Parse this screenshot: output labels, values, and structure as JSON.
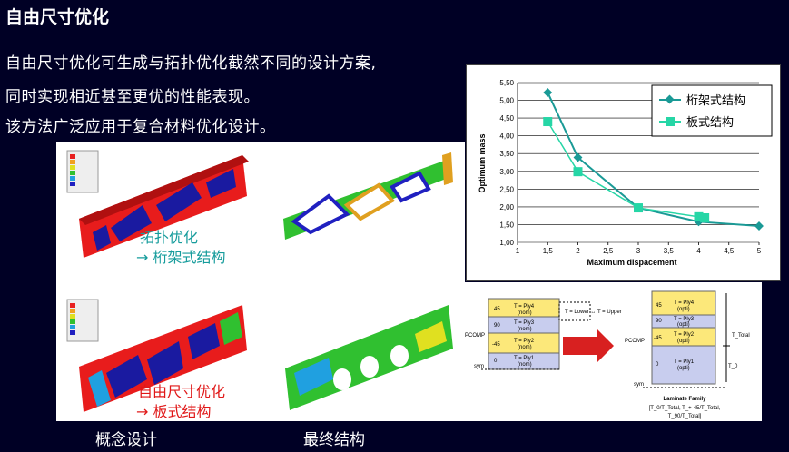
{
  "slide": {
    "title": "自由尺寸优化",
    "lines": [
      "自由尺寸优化可生成与拓扑优化截然不同的设计方案,",
      "同时实现相近甚至更优的性能表现。",
      "该方法广泛应用于复合材料优化设计。"
    ],
    "captions": [
      "概念设计",
      "最终结构"
    ]
  },
  "figure": {
    "topo_label": "拓扑优化",
    "topo_result": "→ 桁架式结构",
    "fs_label": "自由尺寸优化",
    "fs_result": "→ 板式结构"
  },
  "chart_data": {
    "type": "line",
    "xlabel": "Maximum dispacement",
    "ylabel": "Optimum mass",
    "xlim": [
      1,
      5
    ],
    "ylim": [
      1.0,
      5.5
    ],
    "xticks": [
      "1",
      "1,5",
      "2",
      "2,5",
      "3",
      "3,5",
      "4",
      "4,5",
      "5"
    ],
    "yticks": [
      "1,00",
      "1,50",
      "2,00",
      "2,50",
      "3,00",
      "3,50",
      "4,00",
      "4,50",
      "5,00",
      "5,50"
    ],
    "grid": true,
    "legend": "top-right",
    "series": [
      {
        "name": "桁架式结构",
        "color": "#1a9a96",
        "marker": "diamond",
        "x": [
          1.5,
          2,
          3,
          4,
          5
        ],
        "y": [
          5.22,
          3.39,
          1.97,
          1.58,
          1.46
        ]
      },
      {
        "name": "板式结构",
        "color": "#26d6a6",
        "marker": "square",
        "x": [
          1.5,
          2,
          3,
          4,
          4.1
        ],
        "y": [
          4.4,
          2.99,
          1.97,
          1.72,
          1.69
        ]
      }
    ]
  },
  "laminate": {
    "left_plies": [
      {
        "angle": "45",
        "name": "T = Ply4",
        "sub": "(nom)"
      },
      {
        "angle": "90",
        "name": "T = Ply3",
        "sub": "(nom)"
      },
      {
        "angle": "-45",
        "name": "T = Ply2",
        "sub": "(nom)"
      },
      {
        "angle": "0",
        "name": "T = Ply1",
        "sub": "(nom)"
      }
    ],
    "right_plies": [
      {
        "angle": "45",
        "name": "T = Ply4",
        "sub": "(opti)"
      },
      {
        "angle": "90",
        "name": "T = Ply3",
        "sub": "(opti)"
      },
      {
        "angle": "-45",
        "name": "T = Ply2",
        "sub": "(opti)"
      },
      {
        "angle": "0",
        "name": "T = Ply1",
        "sub": "(opti)"
      }
    ],
    "pcomp": "PCOMP",
    "sym": "sym",
    "bounds": "T = Lower ↔ T = Upper",
    "t_total": "T_Total",
    "t0": "T_0",
    "family_title": "Laminate Family",
    "family_line1": "[T_0/T_Total, T_+-45/T_Total,",
    "family_line2": "T_90/T_Total]"
  }
}
